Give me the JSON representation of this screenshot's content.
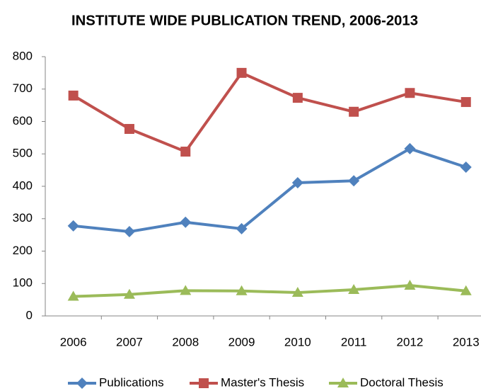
{
  "chart_data": {
    "type": "line",
    "title": "INSTITUTE WIDE PUBLICATION TREND, 2006-2013",
    "categories": [
      "2006",
      "2007",
      "2008",
      "2009",
      "2010",
      "2011",
      "2012",
      "2013"
    ],
    "series": [
      {
        "name": "Publications",
        "color": "#4f81bd",
        "marker": "diamond",
        "values": [
          278,
          260,
          289,
          269,
          411,
          417,
          516,
          459
        ]
      },
      {
        "name": "Master's Thesis",
        "color": "#c0504d",
        "marker": "square",
        "values": [
          680,
          577,
          507,
          750,
          673,
          630,
          688,
          660
        ]
      },
      {
        "name": "Doctoral Thesis",
        "color": "#9bbb59",
        "marker": "triangle",
        "values": [
          60,
          66,
          78,
          77,
          72,
          81,
          94,
          77
        ]
      }
    ],
    "ylim": [
      0,
      800
    ],
    "yticks": [
      0,
      100,
      200,
      300,
      400,
      500,
      600,
      700,
      800
    ],
    "grid": false,
    "legend": "bottom"
  }
}
